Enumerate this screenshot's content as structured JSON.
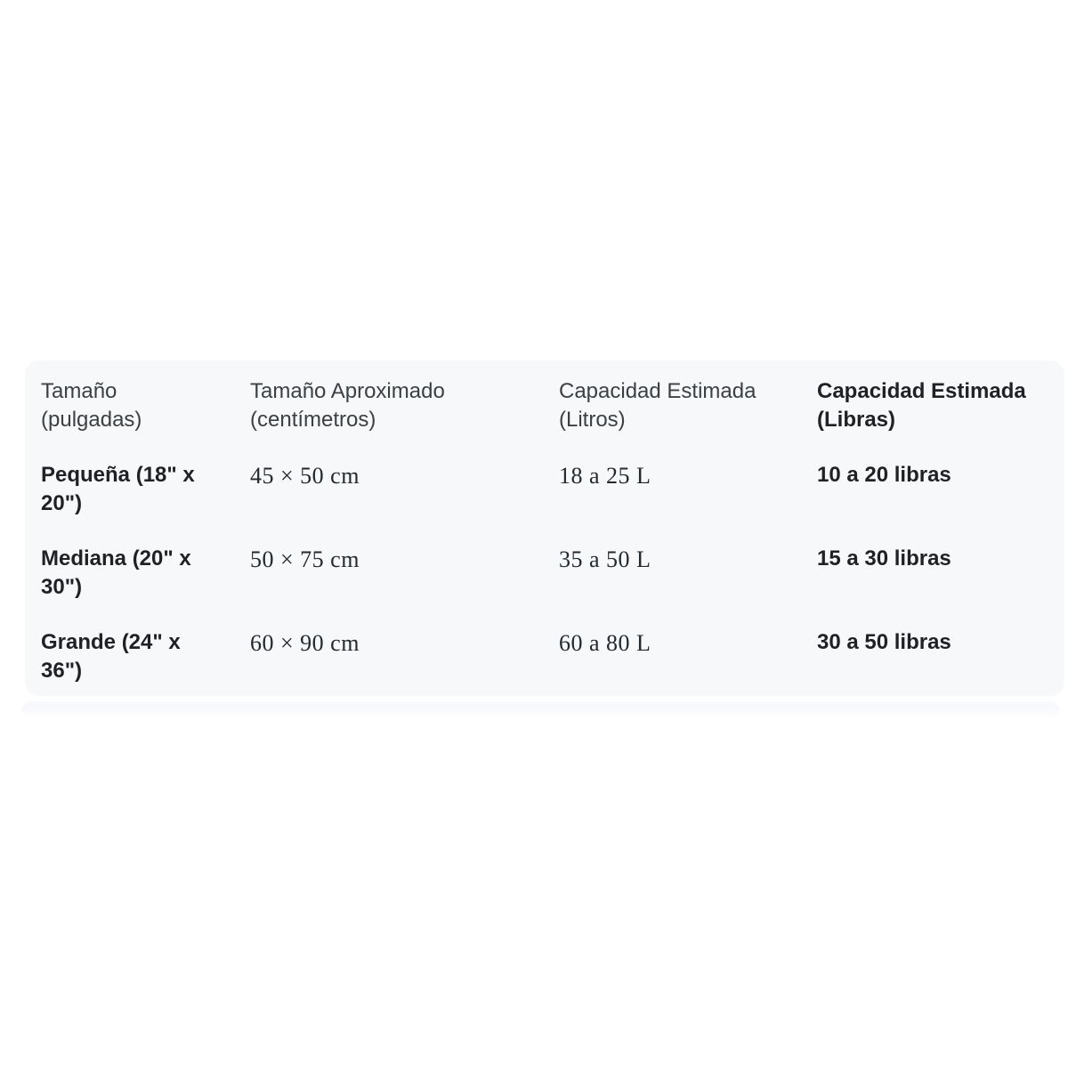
{
  "table": {
    "background_color": "#f7f8fa",
    "columns": [
      {
        "label": "Tamaño (pulgadas)"
      },
      {
        "label": "Tamaño Aproximado (centímetros)"
      },
      {
        "label": "Capacidad Estimada (Litros)"
      },
      {
        "label": "Capacidad Estimada (Libras)"
      }
    ],
    "rows": [
      {
        "size_in": "Pequeña (18\" x 20\")",
        "size_cm": "45 × 50 cm",
        "cap_l": "18 a 25 L",
        "cap_lb": "10 a 20 libras"
      },
      {
        "size_in": "Mediana (20\" x 30\")",
        "size_cm": "50 × 75 cm",
        "cap_l": "35 a 50 L",
        "cap_lb": "15 a 30 libras"
      },
      {
        "size_in": "Grande (24\" x 36\")",
        "size_cm": "60 × 90 cm",
        "cap_l": "60 a 80 L",
        "cap_lb": "30 a 50 libras"
      }
    ]
  },
  "next_section": {
    "note": "partially visible next card",
    "background_color": "#f8f9fc"
  }
}
